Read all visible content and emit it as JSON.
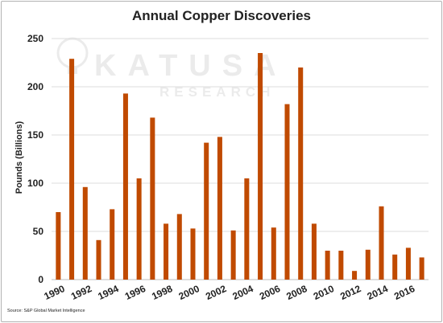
{
  "chart_data": {
    "type": "bar",
    "title": "Annual Copper Discoveries",
    "xlabel": "",
    "ylabel": "Pounds (Billions)",
    "ylim": [
      0,
      250
    ],
    "yticks": [
      0,
      50,
      100,
      150,
      200,
      250
    ],
    "grid": true,
    "legend": "none",
    "categories": [
      "1990",
      "1991",
      "1992",
      "1993",
      "1994",
      "1995",
      "1996",
      "1997",
      "1998",
      "1999",
      "2000",
      "2001",
      "2002",
      "2003",
      "2004",
      "2005",
      "2006",
      "2007",
      "2008",
      "2009",
      "2010",
      "2011",
      "2012",
      "2013",
      "2014",
      "2015",
      "2016",
      "2017"
    ],
    "xtick_labels": [
      "1990",
      "1992",
      "1994",
      "1996",
      "1998",
      "2000",
      "2002",
      "2004",
      "2006",
      "2008",
      "2010",
      "2012",
      "2014",
      "2016"
    ],
    "values": [
      70,
      229,
      96,
      41,
      73,
      193,
      105,
      168,
      58,
      68,
      53,
      142,
      148,
      51,
      105,
      235,
      54,
      182,
      220,
      58,
      30,
      30,
      9,
      31,
      76,
      26,
      33,
      23
    ],
    "bar_color": "#C04A00"
  },
  "watermark": {
    "brand": "KATUSA",
    "subtitle": "RESEARCH"
  },
  "source": "Source: S&P Global Market Intelligence"
}
